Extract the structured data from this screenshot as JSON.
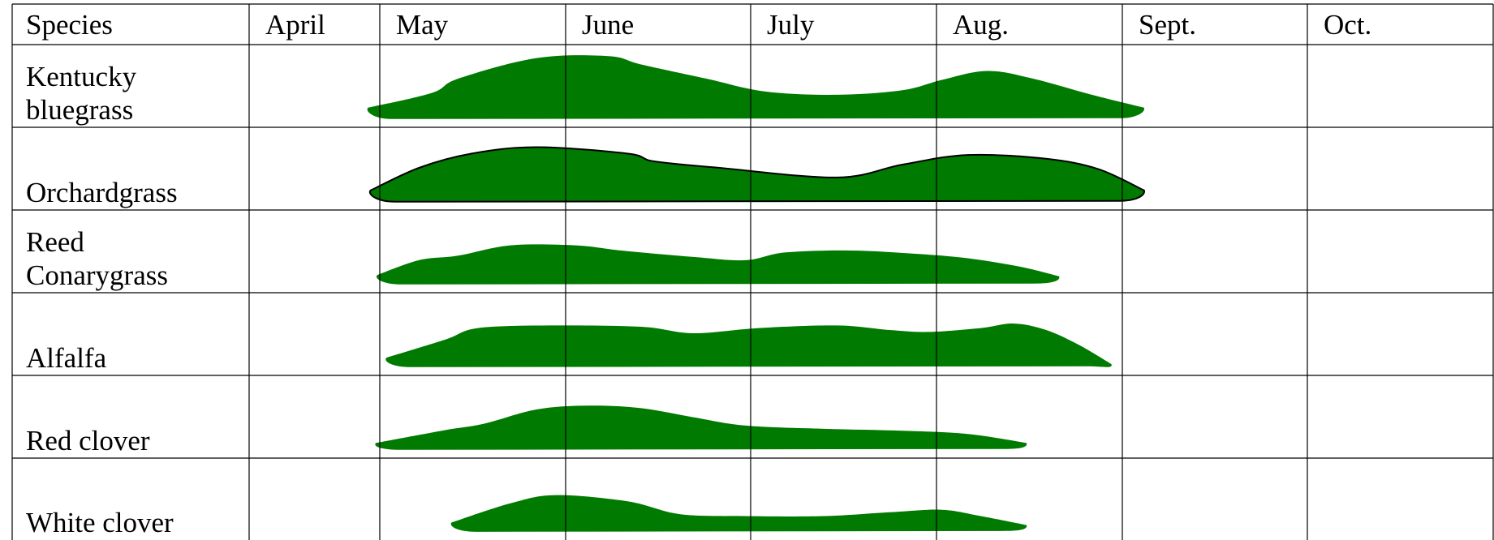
{
  "chart_data": {
    "type": "table",
    "header_label": "Species",
    "months": [
      "April",
      "May",
      "June",
      "July",
      "Aug.",
      "Sept.",
      "Oct."
    ],
    "fill_color": "#007a00",
    "outline_color": "#000000",
    "rows": [
      {
        "species": [
          "Kentucky",
          "bluegrass"
        ],
        "outlined": false,
        "start": 0.91,
        "end": 6.85,
        "profile": [
          [
            0.91,
            0.15
          ],
          [
            1.4,
            0.38
          ],
          [
            1.6,
            0.6
          ],
          [
            2.2,
            0.92
          ],
          [
            2.75,
            0.95
          ],
          [
            3.0,
            0.82
          ],
          [
            3.5,
            0.6
          ],
          [
            3.95,
            0.4
          ],
          [
            4.5,
            0.35
          ],
          [
            5.0,
            0.42
          ],
          [
            5.3,
            0.58
          ],
          [
            5.65,
            0.72
          ],
          [
            6.0,
            0.6
          ],
          [
            6.45,
            0.35
          ],
          [
            6.85,
            0.15
          ]
        ]
      },
      {
        "species": [
          "Orchardgrass"
        ],
        "outlined": true,
        "start": 0.93,
        "end": 6.85,
        "profile": [
          [
            0.93,
            0.15
          ],
          [
            1.3,
            0.5
          ],
          [
            1.7,
            0.72
          ],
          [
            2.2,
            0.82
          ],
          [
            2.9,
            0.72
          ],
          [
            3.1,
            0.6
          ],
          [
            3.6,
            0.5
          ],
          [
            4.5,
            0.35
          ],
          [
            5.0,
            0.55
          ],
          [
            5.5,
            0.7
          ],
          [
            6.1,
            0.64
          ],
          [
            6.5,
            0.48
          ],
          [
            6.85,
            0.15
          ]
        ]
      },
      {
        "species": [
          "Reed",
          "Conarygrass"
        ],
        "outlined": false,
        "start": 0.98,
        "end": 6.2,
        "profile": [
          [
            0.98,
            0.12
          ],
          [
            1.3,
            0.35
          ],
          [
            1.6,
            0.42
          ],
          [
            2.0,
            0.58
          ],
          [
            2.5,
            0.58
          ],
          [
            2.85,
            0.5
          ],
          [
            3.4,
            0.4
          ],
          [
            3.8,
            0.35
          ],
          [
            4.1,
            0.47
          ],
          [
            4.6,
            0.5
          ],
          [
            5.1,
            0.45
          ],
          [
            5.5,
            0.38
          ],
          [
            5.9,
            0.25
          ],
          [
            6.2,
            0.1
          ]
        ]
      },
      {
        "species": [
          "Alfalfa"
        ],
        "outlined": false,
        "start": 1.05,
        "end": 6.6,
        "profile": [
          [
            1.05,
            0.12
          ],
          [
            1.5,
            0.4
          ],
          [
            1.75,
            0.58
          ],
          [
            2.3,
            0.62
          ],
          [
            3.0,
            0.6
          ],
          [
            3.4,
            0.5
          ],
          [
            3.9,
            0.58
          ],
          [
            4.5,
            0.62
          ],
          [
            4.9,
            0.55
          ],
          [
            5.2,
            0.52
          ],
          [
            5.6,
            0.58
          ],
          [
            5.85,
            0.65
          ],
          [
            6.1,
            0.55
          ],
          [
            6.35,
            0.32
          ],
          [
            6.6,
            0.02
          ]
        ]
      },
      {
        "species": [
          "Red clover"
        ],
        "outlined": false,
        "start": 0.97,
        "end": 5.95,
        "profile": [
          [
            0.97,
            0.08
          ],
          [
            1.5,
            0.28
          ],
          [
            1.8,
            0.38
          ],
          [
            2.2,
            0.6
          ],
          [
            2.6,
            0.66
          ],
          [
            3.0,
            0.62
          ],
          [
            3.4,
            0.48
          ],
          [
            3.8,
            0.35
          ],
          [
            4.4,
            0.3
          ],
          [
            5.0,
            0.27
          ],
          [
            5.5,
            0.22
          ],
          [
            5.95,
            0.08
          ]
        ]
      },
      {
        "species": [
          "White clover"
        ],
        "outlined": false,
        "start": 1.55,
        "end": 5.95,
        "profile": [
          [
            1.55,
            0.12
          ],
          [
            2.0,
            0.42
          ],
          [
            2.35,
            0.55
          ],
          [
            2.9,
            0.45
          ],
          [
            3.3,
            0.25
          ],
          [
            3.8,
            0.22
          ],
          [
            4.4,
            0.22
          ],
          [
            4.9,
            0.28
          ],
          [
            5.3,
            0.32
          ],
          [
            5.6,
            0.22
          ],
          [
            5.95,
            0.08
          ]
        ]
      }
    ]
  }
}
